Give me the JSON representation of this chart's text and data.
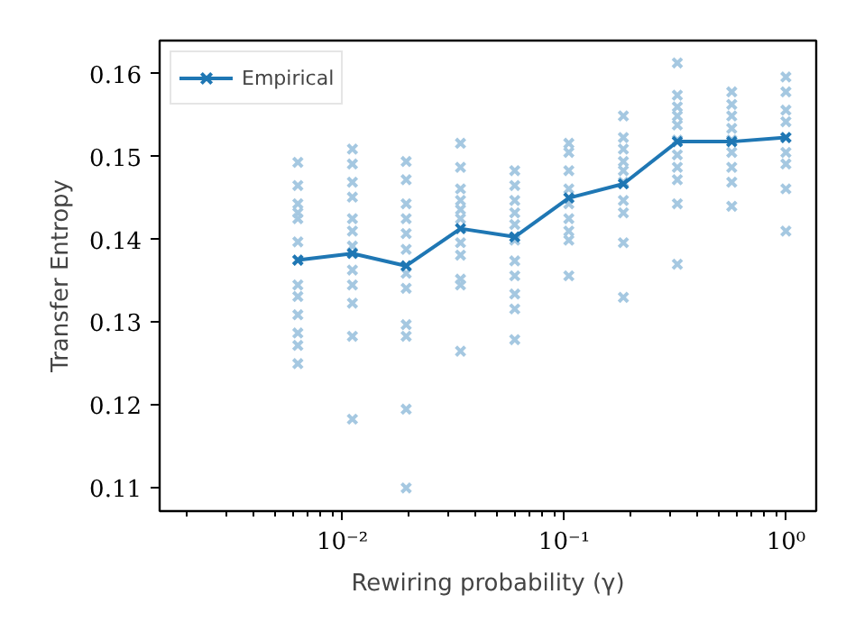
{
  "chart_data": {
    "type": "scatter",
    "xlabel": "Rewiring probability (γ)",
    "ylabel": "Transfer Entropy",
    "log": "x",
    "xlim": [
      0.0015,
      1.37
    ],
    "ylim": [
      0.1072,
      0.164
    ],
    "xticks": [
      {
        "value": 0.01,
        "label": "10⁻²"
      },
      {
        "value": 0.1,
        "label": "10⁻¹"
      },
      {
        "value": 1,
        "label": "10⁰"
      }
    ],
    "yticks": [
      0.11,
      0.12,
      0.13,
      0.14,
      0.15,
      0.16
    ],
    "grid": false,
    "legend": "top left",
    "series": [
      {
        "color": "#a5c8e1",
        "marker": "cross",
        "x": [
          0.0063,
          0.0063,
          0.0063,
          0.0063,
          0.0063,
          0.0063,
          0.0063,
          0.0063,
          0.0063,
          0.0063,
          0.0063,
          0.0063,
          0.0063,
          0.0111,
          0.0111,
          0.0111,
          0.0111,
          0.0111,
          0.0111,
          0.0111,
          0.0111,
          0.0111,
          0.0111,
          0.0111,
          0.0111,
          0.0194,
          0.0194,
          0.0194,
          0.0194,
          0.0194,
          0.0194,
          0.0194,
          0.0194,
          0.0194,
          0.0194,
          0.0194,
          0.0194,
          0.0341,
          0.0341,
          0.0341,
          0.0341,
          0.0341,
          0.0341,
          0.0341,
          0.0341,
          0.0341,
          0.0341,
          0.0341,
          0.0599,
          0.0599,
          0.0599,
          0.0599,
          0.0599,
          0.0599,
          0.0599,
          0.0599,
          0.0599,
          0.0599,
          0.0599,
          0.105,
          0.105,
          0.105,
          0.105,
          0.105,
          0.105,
          0.105,
          0.105,
          0.105,
          0.185,
          0.185,
          0.185,
          0.185,
          0.185,
          0.185,
          0.185,
          0.185,
          0.185,
          0.185,
          0.324,
          0.324,
          0.324,
          0.324,
          0.324,
          0.324,
          0.324,
          0.324,
          0.324,
          0.324,
          0.324,
          0.57,
          0.57,
          0.57,
          0.57,
          0.57,
          0.57,
          0.57,
          0.57,
          0.57,
          1.0,
          1.0,
          1.0,
          1.0,
          1.0,
          1.0,
          1.0,
          1.0,
          1.0
        ],
        "values": [
          0.1493,
          0.1465,
          0.1443,
          0.1432,
          0.1425,
          0.1397,
          0.1375,
          0.1345,
          0.1331,
          0.1309,
          0.1287,
          0.1272,
          0.125,
          0.1509,
          0.1491,
          0.1469,
          0.1451,
          0.1425,
          0.141,
          0.1392,
          0.1363,
          0.1345,
          0.1323,
          0.1283,
          0.1183,
          0.1494,
          0.1472,
          0.1443,
          0.1425,
          0.1407,
          0.1388,
          0.1359,
          0.1341,
          0.1297,
          0.1283,
          0.1195,
          0.11,
          0.1516,
          0.1487,
          0.1461,
          0.1447,
          0.1436,
          0.1425,
          0.1396,
          0.1381,
          0.1352,
          0.1345,
          0.1265,
          0.1483,
          0.1465,
          0.1447,
          0.1432,
          0.1418,
          0.1399,
          0.1374,
          0.1356,
          0.1334,
          0.1316,
          0.1279,
          0.1516,
          0.1505,
          0.1483,
          0.1461,
          0.1443,
          0.1425,
          0.141,
          0.1399,
          0.1356,
          0.1549,
          0.1523,
          0.1509,
          0.1494,
          0.1483,
          0.1469,
          0.1447,
          0.1432,
          0.1396,
          0.133,
          0.1613,
          0.1574,
          0.156,
          0.1549,
          0.1538,
          0.152,
          0.1502,
          0.1487,
          0.1472,
          0.1443,
          0.137,
          0.1578,
          0.1563,
          0.1549,
          0.1534,
          0.152,
          0.1505,
          0.1487,
          0.1469,
          0.144,
          0.1596,
          0.1578,
          0.1556,
          0.1542,
          0.1523,
          0.1505,
          0.1491,
          0.1461,
          0.141
        ]
      },
      {
        "type": "line",
        "name": "Empirical",
        "color": "#1f77b4",
        "marker": "cross",
        "line_style": "solid",
        "x": [
          0.0063,
          0.0111,
          0.0194,
          0.0341,
          0.0599,
          0.105,
          0.185,
          0.324,
          0.57,
          1.0
        ],
        "values": [
          0.1375,
          0.1383,
          0.1368,
          0.1413,
          0.1403,
          0.145,
          0.1467,
          0.1518,
          0.1518,
          0.1523
        ]
      }
    ]
  }
}
